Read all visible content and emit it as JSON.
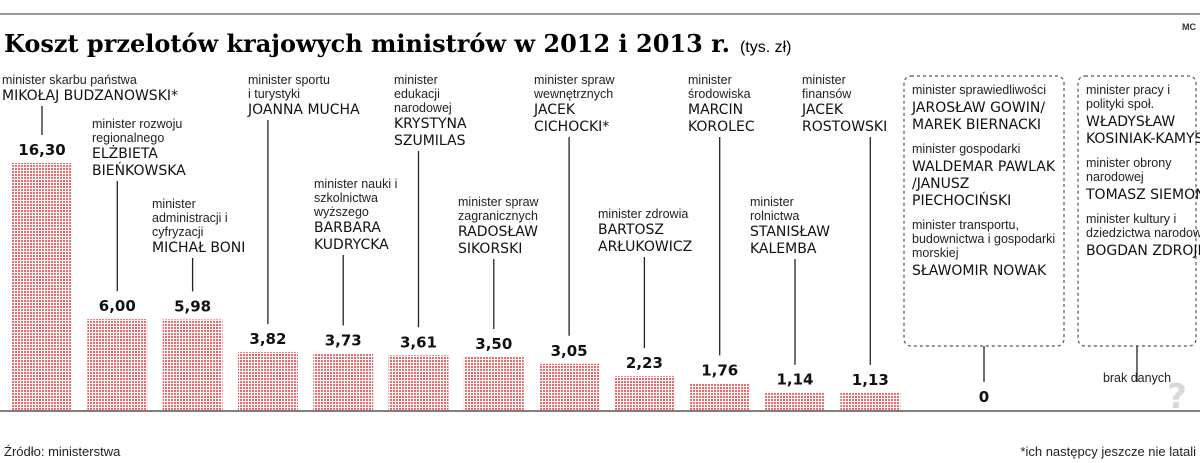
{
  "header": {
    "title": "Koszt przelotów krajowych ministrów w 2012 i 2013 r.",
    "unit": "(tys. zł)",
    "badge": "MC"
  },
  "chart_data": {
    "type": "bar",
    "title": "Koszt przelotów krajowych ministrów w 2012 i 2013 r.",
    "ylabel": "tys. zł",
    "ylim": [
      0,
      16.3
    ],
    "bar_color": "#f07575",
    "bars": [
      {
        "role": "minister skarbu państwa",
        "name": "MIKOŁAJ BUDZANOWSKI*",
        "value": 16.3,
        "value_label": "16,30"
      },
      {
        "role": "minister rozwoju regionalnego",
        "name": "ELŻBIETA BIEŃKOWSKA",
        "value": 6.0,
        "value_label": "6,00"
      },
      {
        "role": "minister administracji i cyfryzacji",
        "name": "MICHAŁ BONI",
        "value": 5.98,
        "value_label": "5,98"
      },
      {
        "role": "minister sportu i turystyki",
        "name": "JOANNA MUCHA",
        "value": 3.82,
        "value_label": "3,82"
      },
      {
        "role": "minister nauki i szkolnictwa wyższego",
        "name": "BARBARA KUDRYCKA",
        "value": 3.73,
        "value_label": "3,73"
      },
      {
        "role": "minister edukacji narodowej",
        "name": "KRYSTYNA SZUMILAS",
        "value": 3.61,
        "value_label": "3,61"
      },
      {
        "role": "minister spraw zagranicznych",
        "name": "RADOSŁAW SIKORSKI",
        "value": 3.5,
        "value_label": "3,50"
      },
      {
        "role": "minister spraw wewnętrznych",
        "name": "JACEK CICHOCKI*",
        "value": 3.05,
        "value_label": "3,05"
      },
      {
        "role": "minister zdrowia",
        "name": "BARTOSZ ARŁUKOWICZ",
        "value": 2.23,
        "value_label": "2,23"
      },
      {
        "role": "minister środowiska",
        "name": "MARCIN KOROLEC",
        "value": 1.76,
        "value_label": "1,76"
      },
      {
        "role": "minister rolnictwa",
        "name": "STANISŁAW KALEMBA",
        "value": 1.14,
        "value_label": "1,14"
      },
      {
        "role": "minister finansów",
        "name": "JACEK ROSTOWSKI",
        "value": 1.13,
        "value_label": "1,13"
      }
    ],
    "zero_group": {
      "value_label": "0",
      "entries": [
        {
          "role": "minister sprawiedliwości",
          "name": "JAROSŁAW GOWIN/ MAREK BIERNACKI"
        },
        {
          "role": "minister gospodarki",
          "name": "WALDEMAR PAWLAK /JANUSZ PIECHOCIŃSKI"
        },
        {
          "role": "minister transportu, budownictwa i gospodarki morskiej",
          "name": "SŁAWOMIR NOWAK"
        }
      ]
    },
    "no_data_group": {
      "label": "brak danych",
      "mark": "?",
      "entries": [
        {
          "role": "minister pracy i polityki społ.",
          "name": "WŁADYSŁAW KOSINIAK-KAMYSZ"
        },
        {
          "role": "minister obrony narodowej",
          "name": "TOMASZ SIEMONIAK"
        },
        {
          "role": "minister kultury i dziedzictwa narodowego",
          "name": "BOGDAN ZDROJEWSKI"
        }
      ]
    }
  },
  "footer": {
    "source": "Źródło: ministerstwa",
    "note": "*ich następcy jeszcze nie latali"
  }
}
